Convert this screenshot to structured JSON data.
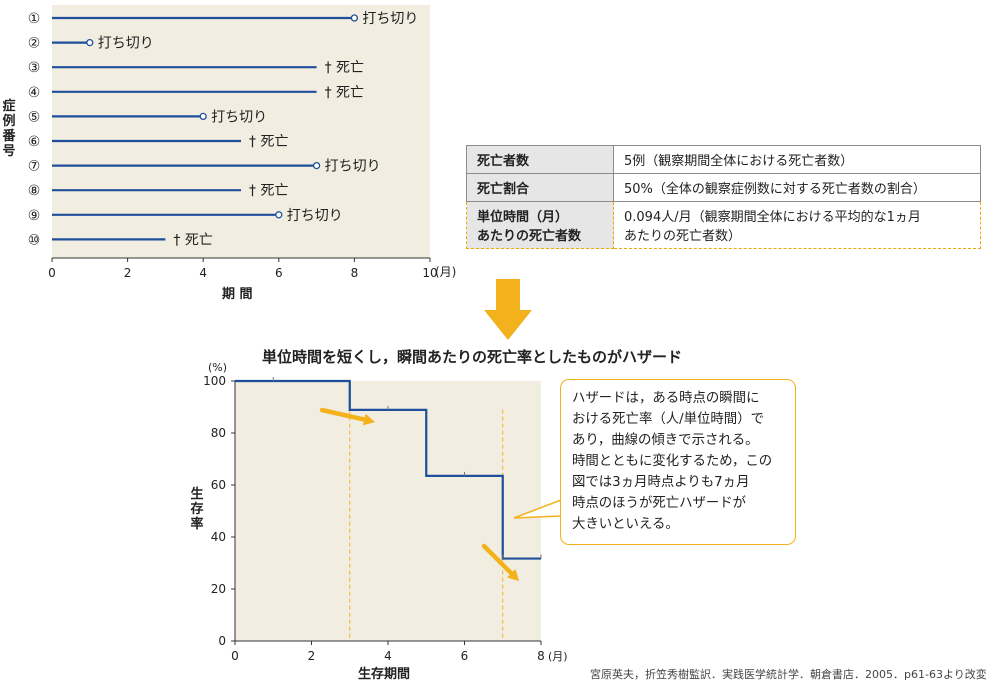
{
  "top_chart": {
    "case_numbers": [
      "①",
      "②",
      "③",
      "④",
      "⑤",
      "⑥",
      "⑦",
      "⑧",
      "⑨",
      "⑩"
    ],
    "y_label": "症例番号",
    "x_label": "期 間",
    "x_unit": "(月)",
    "x_ticks": [
      "0",
      "2",
      "4",
      "6",
      "8",
      "10"
    ],
    "colors": {
      "panel": "#f1ede0",
      "line": "#1f4e9b"
    }
  },
  "table": {
    "rows": [
      {
        "header": "死亡者数",
        "value": "5例（観察期間全体における死亡者数）"
      },
      {
        "header": "死亡割合",
        "value": "50%（全体の観察症例数に対する死亡者数の割合）"
      }
    ],
    "highlight_row": {
      "header_line1": "単位時間（月）",
      "header_line2": "あたりの死亡者数",
      "value_line1": "0.094人/月（観察期間全体における平均的な1ヵ月",
      "value_line2": "あたりの死亡者数）"
    }
  },
  "arrow_color": "#f3b21b",
  "heading": "単位時間を短くし，瞬間あたりの死亡率としたものがハザード",
  "bottom_chart": {
    "y_label": "生存率",
    "y_unit": "(%)",
    "x_label": "生存期間",
    "x_unit": "(月)",
    "y_ticks": [
      "0",
      "20",
      "40",
      "60",
      "80",
      "100"
    ],
    "x_ticks": [
      "0",
      "2",
      "4",
      "6",
      "8"
    ]
  },
  "callout": {
    "lines": [
      "ハザードは，ある時点の瞬間に",
      "おける死亡率（人/単位時間）で",
      "あり，曲線の傾きで示される。",
      "時間とともに変化するため，この",
      "図では3ヵ月時点よりも7ヵ月",
      "時点のほうが死亡ハザードが",
      "大きいといえる。"
    ]
  },
  "source": "宮原英夫，折笠秀樹監訳．実践医学統計学．朝倉書店．2005．p61-63より改変",
  "chart_data": [
    {
      "type": "timeline",
      "x_unit": "月",
      "xlim": [
        0,
        10
      ],
      "cases": [
        {
          "label": "①",
          "time": 8,
          "event": "打ち切り"
        },
        {
          "label": "②",
          "time": 1,
          "event": "打ち切り"
        },
        {
          "label": "③",
          "time": 7,
          "event": "† 死亡"
        },
        {
          "label": "④",
          "time": 7,
          "event": "† 死亡"
        },
        {
          "label": "⑤",
          "time": 4,
          "event": "打ち切り"
        },
        {
          "label": "⑥",
          "time": 5,
          "event": "† 死亡"
        },
        {
          "label": "⑦",
          "time": 7,
          "event": "打ち切り"
        },
        {
          "label": "⑧",
          "time": 5,
          "event": "† 死亡"
        },
        {
          "label": "⑨",
          "time": 6,
          "event": "打ち切り"
        },
        {
          "label": "⑩",
          "time": 3,
          "event": "† 死亡"
        }
      ]
    },
    {
      "type": "line",
      "step": true,
      "xlim": [
        0,
        8
      ],
      "ylim": [
        0,
        100
      ],
      "x": [
        0,
        3,
        5,
        7,
        8
      ],
      "y": [
        100,
        88.9,
        63.5,
        31.7,
        31.7
      ],
      "censor_marks": [
        {
          "x": 1,
          "y": 100
        },
        {
          "x": 4,
          "y": 88.9
        },
        {
          "x": 6,
          "y": 63.5
        },
        {
          "x": 7,
          "y": 31.7
        },
        {
          "x": 8,
          "y": 31.7
        }
      ],
      "hazard_arrows_at": [
        3,
        7
      ],
      "grid": false,
      "colors": {
        "panel": "#f1ede0",
        "line": "#1f4e9b",
        "guide": "#f3b21b"
      }
    }
  ]
}
